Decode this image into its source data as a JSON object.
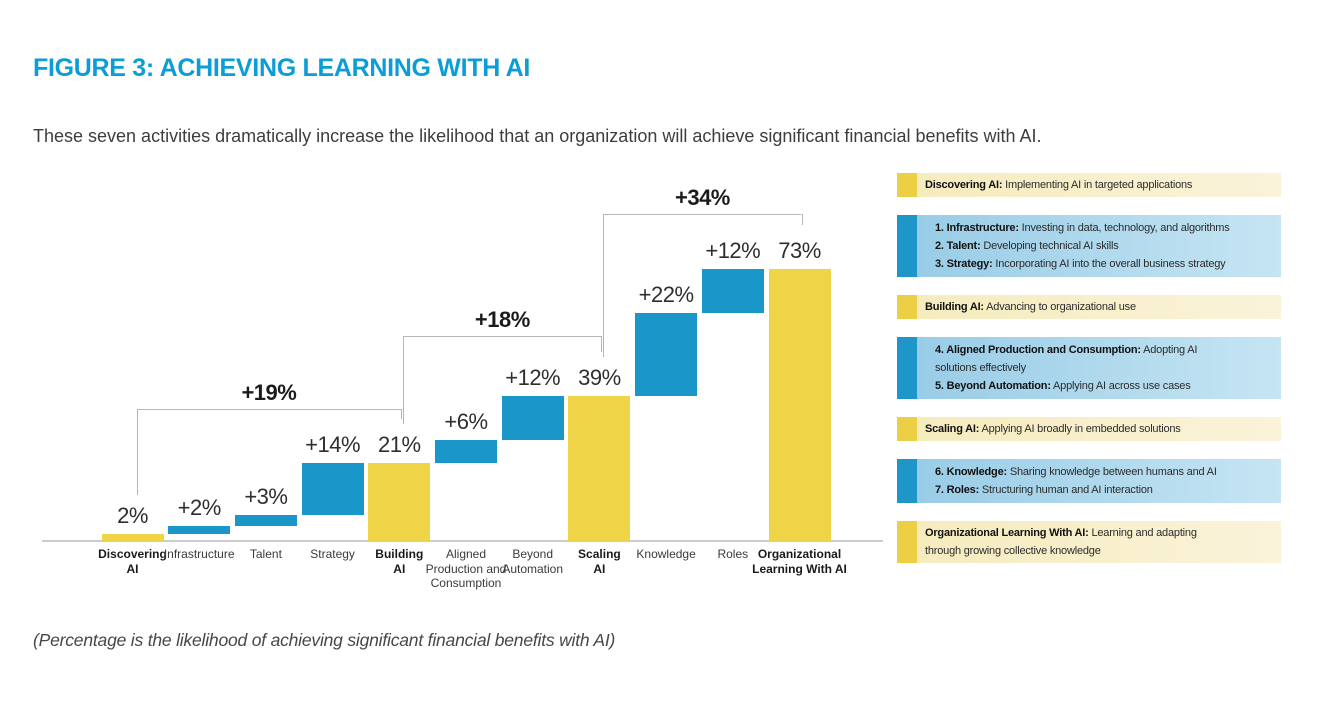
{
  "figure": {
    "title": "FIGURE 3: ACHIEVING LEARNING WITH AI",
    "subtitle": "These seven activities dramatically increase the likelihood that an organization will achieve significant financial benefits with AI.",
    "footnote": "(Percentage is the likelihood of achieving significant financial benefits with AI)"
  },
  "colors": {
    "title_blue": "#0D9DD6",
    "bar_yellow": "#F0D447",
    "bar_blue": "#1B96C8",
    "legend_yellow_accent": "#EDCF45",
    "legend_blue_accent": "#1E96C8",
    "legend_yellow_bg": "#F9F1D0",
    "legend_blue_bg": "#BADDF0",
    "bracket_line": "#b5b5b5",
    "axis_line": "#cccccc"
  },
  "chart_data": {
    "type": "bar",
    "subtype": "waterfall",
    "unit": "%",
    "ylim": [
      0,
      80
    ],
    "grid": false,
    "legend_position": "right",
    "categories": [
      "Discovering AI",
      "Infrastructure",
      "Talent",
      "Strategy",
      "Building AI",
      "Aligned Production and Consumption",
      "Beyond Automation",
      "Scaling AI",
      "Knowledge",
      "Roles",
      "Organizational Learning With AI"
    ],
    "bars": [
      {
        "id": "discovering-ai",
        "category": "Discovering AI",
        "label_lines": "Discovering\nAI",
        "emphasis": true,
        "color": "yellow",
        "role": "total",
        "start": 0,
        "end": 2,
        "value": 2,
        "value_label": "2%"
      },
      {
        "id": "infrastructure",
        "category": "Infrastructure",
        "label_lines": "Infrastructure",
        "emphasis": false,
        "color": "blue",
        "role": "delta",
        "start": 2,
        "end": 4,
        "value": 2,
        "value_label": "+2%"
      },
      {
        "id": "talent",
        "category": "Talent",
        "label_lines": "Talent",
        "emphasis": false,
        "color": "blue",
        "role": "delta",
        "start": 4,
        "end": 7,
        "value": 3,
        "value_label": "+3%"
      },
      {
        "id": "strategy",
        "category": "Strategy",
        "label_lines": "Strategy",
        "emphasis": false,
        "color": "blue",
        "role": "delta",
        "start": 7,
        "end": 21,
        "value": 14,
        "value_label": "+14%"
      },
      {
        "id": "building-ai",
        "category": "Building AI",
        "label_lines": "Building\nAI",
        "emphasis": true,
        "color": "yellow",
        "role": "total",
        "start": 0,
        "end": 21,
        "value": 21,
        "value_label": "21%"
      },
      {
        "id": "aligned-production-consumption",
        "category": "Aligned Production and Consumption",
        "label_lines": "Aligned\nProduction and\nConsumption",
        "emphasis": false,
        "color": "blue",
        "role": "delta",
        "start": 21,
        "end": 27,
        "value": 6,
        "value_label": "+6%"
      },
      {
        "id": "beyond-automation",
        "category": "Beyond Automation",
        "label_lines": "Beyond\nAutomation",
        "emphasis": false,
        "color": "blue",
        "role": "delta",
        "start": 27,
        "end": 39,
        "value": 12,
        "value_label": "+12%"
      },
      {
        "id": "scaling-ai",
        "category": "Scaling AI",
        "label_lines": "Scaling\nAI",
        "emphasis": true,
        "color": "yellow",
        "role": "total",
        "start": 0,
        "end": 39,
        "value": 39,
        "value_label": "39%"
      },
      {
        "id": "knowledge",
        "category": "Knowledge",
        "label_lines": "Knowledge",
        "emphasis": false,
        "color": "blue",
        "role": "delta",
        "start": 39,
        "end": 61,
        "value": 22,
        "value_label": "+22%"
      },
      {
        "id": "roles",
        "category": "Roles",
        "label_lines": "Roles",
        "emphasis": false,
        "color": "blue",
        "role": "delta",
        "start": 61,
        "end": 73,
        "value": 12,
        "value_label": "+12%"
      },
      {
        "id": "organizational-learning-with-ai",
        "category": "Organizational Learning With AI",
        "label_lines": "Organizational\nLearning With AI",
        "emphasis": true,
        "color": "yellow",
        "role": "total",
        "start": 0,
        "end": 73,
        "value": 73,
        "value_label": "73%"
      }
    ],
    "brackets": [
      {
        "id": "bracket-19",
        "label": "+19%",
        "from_index": 0,
        "to_index": 4,
        "from": "Discovering AI",
        "to": "Building AI"
      },
      {
        "id": "bracket-18",
        "label": "+18%",
        "from_index": 4,
        "to_index": 7,
        "from": "Building AI",
        "to": "Scaling AI"
      },
      {
        "id": "bracket-34",
        "label": "+34%",
        "from_index": 7,
        "to_index": 10,
        "from": "Scaling AI",
        "to": "Organizational Learning With AI"
      }
    ]
  },
  "legend": {
    "entries": [
      {
        "id": "discovering-ai",
        "color": "yellow",
        "items": [
          {
            "bold": "Discovering AI:",
            "text": " Implementing AI in targeted applications"
          }
        ]
      },
      {
        "id": "discovering-activities",
        "color": "blue",
        "items": [
          {
            "bold": "1. Infrastructure:",
            "text": " Investing in data, technology, and algorithms"
          },
          {
            "bold": "2. Talent:",
            "text": " Developing technical AI skills"
          },
          {
            "bold": "3. Strategy:",
            "text": " Incorporating AI into the overall business strategy"
          }
        ]
      },
      {
        "id": "building-ai",
        "color": "yellow",
        "items": [
          {
            "bold": "Building AI:",
            "text": " Advancing to organizational use"
          }
        ]
      },
      {
        "id": "building-activities",
        "color": "blue",
        "items": [
          {
            "bold": "4. Aligned Production and Consumption:",
            "text": " Adopting AI"
          },
          {
            "bold": "",
            "text": "solutions effectively"
          },
          {
            "bold": "5. Beyond Automation:",
            "text": " Applying AI across use cases"
          }
        ]
      },
      {
        "id": "scaling-ai",
        "color": "yellow",
        "items": [
          {
            "bold": "Scaling AI:",
            "text": " Applying AI broadly in embedded solutions"
          }
        ]
      },
      {
        "id": "scaling-activities",
        "color": "blue",
        "items": [
          {
            "bold": "6. Knowledge:",
            "text": " Sharing knowledge between humans and AI"
          },
          {
            "bold": "7. Roles:",
            "text": " Structuring human and AI interaction"
          }
        ]
      },
      {
        "id": "organizational-learning-with-ai",
        "color": "yellow",
        "items": [
          {
            "bold": "Organizational Learning With AI:",
            "text": " Learning and adapting"
          },
          {
            "bold": "",
            "text": "through growing collective knowledge"
          }
        ]
      }
    ]
  }
}
